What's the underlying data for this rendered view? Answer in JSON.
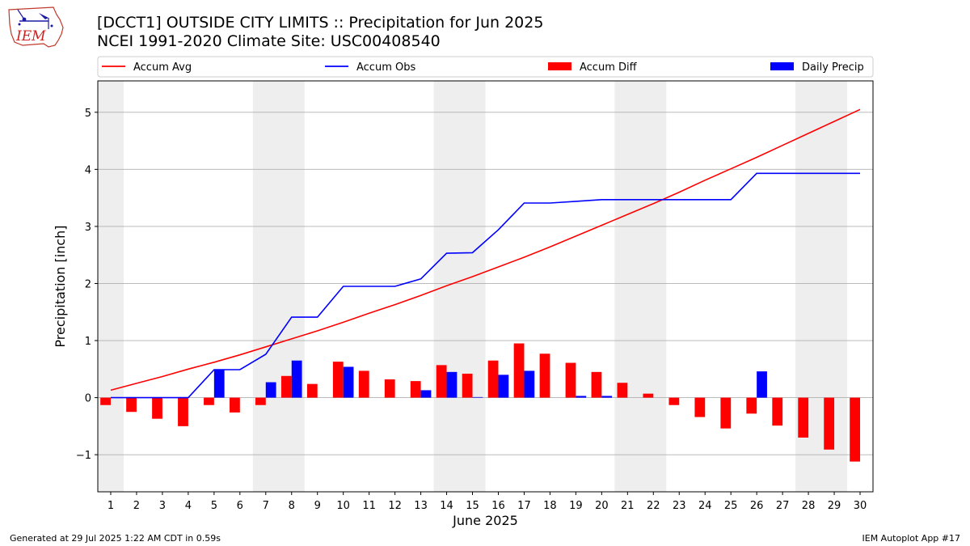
{
  "header": {
    "title": "[DCCT1] OUTSIDE CITY LIMITS :: Precipitation for Jun 2025",
    "subtitle": "NCEI 1991-2020 Climate Site: USC00408540",
    "logo_text": "IEM"
  },
  "footer": {
    "generated": "Generated at 29 Jul 2025 1:22 AM CDT in 0.59s",
    "app": "IEM Autoplot App #17"
  },
  "colors": {
    "avg": "#ff0000",
    "obs": "#0000ff",
    "diff": "#ff0000",
    "daily": "#0000ff",
    "weekend_band": "#eeeeee",
    "grid": "#b0b0b0"
  },
  "chart_data": {
    "type": "bar",
    "title": "[DCCT1] OUTSIDE CITY LIMITS :: Precipitation for Jun 2025",
    "subtitle": "NCEI 1991-2020 Climate Site: USC00408540",
    "xlabel": "June 2025",
    "ylabel": "Precipitation [inch]",
    "x": [
      1,
      2,
      3,
      4,
      5,
      6,
      7,
      8,
      9,
      10,
      11,
      12,
      13,
      14,
      15,
      16,
      17,
      18,
      19,
      20,
      21,
      22,
      23,
      24,
      25,
      26,
      27,
      28,
      29,
      30
    ],
    "xlim": [
      0.5,
      30.5
    ],
    "ylim": [
      -1.65,
      5.55
    ],
    "yticks": [
      -1,
      0,
      1,
      2,
      3,
      4,
      5
    ],
    "ytick_labels": [
      "−1",
      "0",
      "1",
      "2",
      "3",
      "4",
      "5"
    ],
    "grid": "horizontal",
    "legend": {
      "placement": "top",
      "entries": [
        "Accum Avg",
        "Accum Obs",
        "Accum Diff",
        "Daily Precip"
      ]
    },
    "shaded_days": [
      [
        1,
        1
      ],
      [
        7,
        8
      ],
      [
        14,
        15
      ],
      [
        21,
        22
      ],
      [
        28,
        29
      ]
    ],
    "series": [
      {
        "name": "Accum Avg",
        "type": "line",
        "values": [
          0.13,
          0.25,
          0.37,
          0.5,
          0.62,
          0.75,
          0.89,
          1.03,
          1.17,
          1.32,
          1.48,
          1.63,
          1.79,
          1.96,
          2.12,
          2.29,
          2.46,
          2.64,
          2.83,
          3.02,
          3.21,
          3.4,
          3.6,
          3.81,
          4.01,
          4.21,
          4.42,
          4.63,
          4.84,
          5.05
        ]
      },
      {
        "name": "Accum Obs",
        "type": "line",
        "values": [
          0,
          0,
          0,
          0,
          0.49,
          0.49,
          0.76,
          1.41,
          1.41,
          1.95,
          1.95,
          1.95,
          2.08,
          2.53,
          2.54,
          2.94,
          3.41,
          3.41,
          3.44,
          3.47,
          3.47,
          3.47,
          3.47,
          3.47,
          3.47,
          3.93,
          3.93,
          3.93,
          3.93,
          3.93
        ]
      },
      {
        "name": "Accum Diff",
        "type": "bar",
        "values": [
          -0.13,
          -0.25,
          -0.37,
          -0.5,
          -0.13,
          -0.26,
          -0.13,
          0.38,
          0.24,
          0.63,
          0.47,
          0.32,
          0.29,
          0.57,
          0.42,
          0.65,
          0.95,
          0.77,
          0.61,
          0.45,
          0.26,
          0.07,
          -0.13,
          -0.34,
          -0.54,
          -0.28,
          -0.49,
          -0.7,
          -0.91,
          -1.12
        ]
      },
      {
        "name": "Daily Precip",
        "type": "bar",
        "values": [
          0,
          0,
          0,
          0,
          0.49,
          0,
          0.27,
          0.65,
          0,
          0.54,
          0,
          0,
          0.13,
          0.45,
          0.01,
          0.4,
          0.47,
          0,
          0.03,
          0.03,
          0,
          0,
          0,
          0,
          0,
          0.46,
          0,
          0,
          0,
          0
        ]
      }
    ]
  }
}
